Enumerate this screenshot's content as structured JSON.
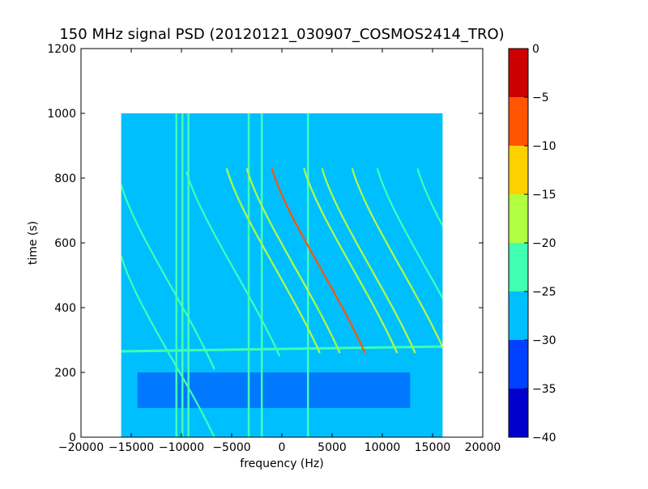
{
  "chart_data": {
    "type": "heatmap",
    "title": "150 MHz signal PSD (20120121_030907_COSMOS2414_TRO)",
    "xlabel": "frequency (Hz)",
    "ylabel": "time (s)",
    "xlim": [
      -20000,
      20000
    ],
    "ylim": [
      0,
      1200
    ],
    "xticks": [
      -20000,
      -15000,
      -10000,
      -5000,
      0,
      5000,
      10000,
      15000,
      20000
    ],
    "yticks": [
      0,
      200,
      400,
      600,
      800,
      1000,
      1200
    ],
    "data_extent": {
      "x": [
        -16000,
        16000
      ],
      "y": [
        0,
        1000
      ]
    },
    "background_level": -28,
    "quiet_band": {
      "time": [
        90,
        200
      ],
      "level": -33
    },
    "horizontal_interference": {
      "time": 265,
      "level": -22
    },
    "vertical_lines_hz": [
      -10500,
      -9900,
      -9300,
      -3300,
      -2000,
      2600
    ],
    "doppler_traces": [
      {
        "x0": -16000,
        "t_top": 780,
        "slope": -1,
        "level": -22
      },
      {
        "x0": -16000,
        "t_top": 560,
        "slope": -1,
        "level": -22
      },
      {
        "x0": -9500,
        "t_top": 820,
        "slope": -1,
        "level": -22
      },
      {
        "x0": -5500,
        "t_top": 830,
        "slope": -1,
        "level": -20
      },
      {
        "x0": -3500,
        "t_top": 830,
        "slope": -1,
        "level": -18
      },
      {
        "x0": -1000,
        "t_top": 830,
        "slope": -1,
        "level": -10
      },
      {
        "x0": 2200,
        "t_top": 830,
        "slope": -1,
        "level": -16
      },
      {
        "x0": 4000,
        "t_top": 830,
        "slope": -1,
        "level": -18
      },
      {
        "x0": 7000,
        "t_top": 830,
        "slope": -1,
        "level": -20
      },
      {
        "x0": 9500,
        "t_top": 830,
        "slope": -1,
        "level": -22
      },
      {
        "x0": 13500,
        "t_top": 830,
        "slope": -1,
        "level": -22
      }
    ],
    "colorbar": {
      "range": [
        -40,
        0
      ],
      "ticks": [
        0,
        -5,
        -10,
        -15,
        -20,
        -25,
        -30,
        -35,
        -40
      ],
      "levels": [
        {
          "from": -40,
          "to": -35,
          "color": "#0000cc"
        },
        {
          "from": -35,
          "to": -30,
          "color": "#0040ff"
        },
        {
          "from": -30,
          "to": -25,
          "color": "#00bfff"
        },
        {
          "from": -25,
          "to": -20,
          "color": "#40ffb0"
        },
        {
          "from": -20,
          "to": -15,
          "color": "#b0ff40"
        },
        {
          "from": -15,
          "to": -10,
          "color": "#ffd000"
        },
        {
          "from": -10,
          "to": -5,
          "color": "#ff5500"
        },
        {
          "from": -5,
          "to": 0,
          "color": "#cc0000"
        }
      ]
    }
  }
}
